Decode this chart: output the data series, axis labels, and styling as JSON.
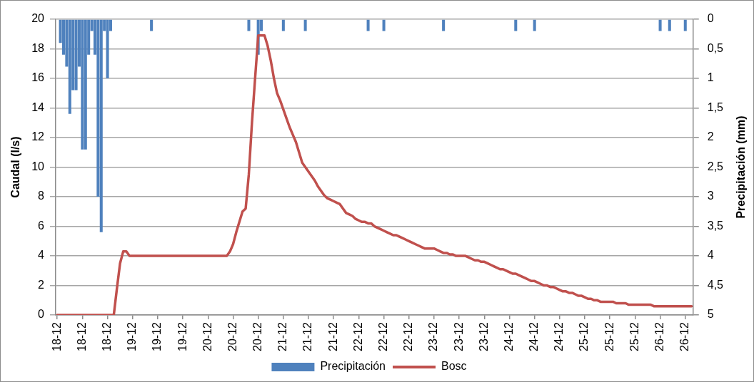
{
  "chart_data": {
    "type": "line",
    "ylabel": "Caudal (l/s)",
    "y2label": "Precipitación (mm)",
    "categories": [
      "18-12",
      null,
      null,
      null,
      null,
      null,
      null,
      null,
      "18-12",
      null,
      null,
      null,
      null,
      null,
      null,
      null,
      "18-12",
      null,
      null,
      null,
      null,
      null,
      null,
      null,
      "19-12",
      null,
      null,
      null,
      null,
      null,
      null,
      null,
      "19-12",
      null,
      null,
      null,
      null,
      null,
      null,
      null,
      "19-12",
      null,
      null,
      null,
      null,
      null,
      null,
      null,
      "20-12",
      null,
      null,
      null,
      null,
      null,
      null,
      null,
      "20-12",
      null,
      null,
      null,
      null,
      null,
      null,
      null,
      "20-12",
      null,
      null,
      null,
      null,
      null,
      null,
      null,
      "21-12",
      null,
      null,
      null,
      null,
      null,
      null,
      null,
      "21-12",
      null,
      null,
      null,
      null,
      null,
      null,
      null,
      "21-12",
      null,
      null,
      null,
      null,
      null,
      null,
      null,
      "22-12",
      null,
      null,
      null,
      null,
      null,
      null,
      null,
      "22-12",
      null,
      null,
      null,
      null,
      null,
      null,
      null,
      "22-12",
      null,
      null,
      null,
      null,
      null,
      null,
      null,
      "23-12",
      null,
      null,
      null,
      null,
      null,
      null,
      null,
      "23-12",
      null,
      null,
      null,
      null,
      null,
      null,
      null,
      "23-12",
      null,
      null,
      null,
      null,
      null,
      null,
      null,
      "24-12",
      null,
      null,
      null,
      null,
      null,
      null,
      null,
      "24-12",
      null,
      null,
      null,
      null,
      null,
      null,
      null,
      "24-12",
      null,
      null,
      null,
      null,
      null,
      null,
      null,
      "25-12",
      null,
      null,
      null,
      null,
      null,
      null,
      null,
      "25-12",
      null,
      null,
      null,
      null,
      null,
      null,
      null,
      "25-12",
      null,
      null,
      null,
      null,
      null,
      null,
      null,
      "26-12",
      null,
      null,
      null,
      null,
      null,
      null,
      null,
      "26-12",
      null,
      null
    ],
    "ylim": [
      0,
      20
    ],
    "yticks": [
      0,
      2,
      4,
      6,
      8,
      10,
      12,
      14,
      16,
      18,
      20
    ],
    "y2lim": [
      5,
      0
    ],
    "y2ticks": [
      0,
      {
        "value": 0.5,
        "label": "0,5"
      },
      1,
      {
        "value": 1.5,
        "label": "1,5"
      },
      2,
      {
        "value": 2.5,
        "label": "2,5"
      },
      3,
      {
        "value": 3.5,
        "label": "3,5"
      },
      4,
      {
        "value": 4.5,
        "label": "4,5"
      },
      5
    ],
    "grid": "y",
    "legend": "bottom",
    "series": [
      {
        "name": "Precipitación",
        "type": "bar",
        "axis": "y2",
        "color": "#4f81bd",
        "values": [
          null,
          0.4,
          0.6,
          0.8,
          1.6,
          1.2,
          1.2,
          0.8,
          2.2,
          2.2,
          0.6,
          0.2,
          0.6,
          3.0,
          3.6,
          0.2,
          1.0,
          0.2,
          null,
          null,
          null,
          null,
          null,
          null,
          null,
          null,
          null,
          null,
          null,
          null,
          0.2,
          null,
          null,
          null,
          null,
          null,
          null,
          null,
          null,
          null,
          null,
          null,
          null,
          null,
          null,
          null,
          null,
          null,
          null,
          null,
          null,
          null,
          null,
          null,
          null,
          null,
          null,
          null,
          null,
          null,
          null,
          0.2,
          null,
          null,
          0.6,
          0.2,
          null,
          null,
          null,
          null,
          null,
          null,
          0.2,
          null,
          null,
          null,
          null,
          null,
          null,
          0.2,
          null,
          null,
          null,
          null,
          null,
          null,
          null,
          null,
          null,
          null,
          null,
          null,
          null,
          null,
          null,
          null,
          null,
          null,
          null,
          0.2,
          null,
          null,
          null,
          null,
          0.2,
          null,
          null,
          null,
          null,
          null,
          null,
          null,
          null,
          null,
          null,
          null,
          null,
          null,
          null,
          null,
          null,
          null,
          null,
          0.2,
          null,
          null,
          null,
          null,
          null,
          null,
          null,
          null,
          null,
          null,
          null,
          null,
          null,
          null,
          null,
          null,
          null,
          null,
          null,
          null,
          null,
          null,
          0.2,
          null,
          null,
          null,
          null,
          null,
          0.2,
          null,
          null,
          null,
          null,
          null,
          null,
          null,
          null,
          null,
          null,
          null,
          null,
          null,
          null,
          null,
          null,
          null,
          null,
          null,
          null,
          null,
          null,
          null,
          null,
          null,
          null,
          null,
          null,
          null,
          null,
          null,
          null,
          null,
          null,
          null,
          null,
          null,
          null,
          null,
          0.2,
          null,
          null,
          0.2,
          null,
          null,
          null,
          null,
          0.2,
          null,
          null
        ]
      },
      {
        "name": "Bosc",
        "color": "#c0504d",
        "values": [
          0,
          0,
          0,
          0,
          0,
          0,
          0,
          0,
          0,
          0,
          0,
          0,
          0,
          0,
          0,
          0,
          0,
          0,
          0,
          1.8,
          3.5,
          4.3,
          4.3,
          4.0,
          4.0,
          4.0,
          4.0,
          4.0,
          4.0,
          4.0,
          4.0,
          4.0,
          4.0,
          4.0,
          4.0,
          4.0,
          4.0,
          4.0,
          4.0,
          4.0,
          4.0,
          4.0,
          4.0,
          4.0,
          4.0,
          4.0,
          4.0,
          4.0,
          4.0,
          4.0,
          4.0,
          4.0,
          4.0,
          4.0,
          4.0,
          4.3,
          4.8,
          5.6,
          6.3,
          7.0,
          7.2,
          9.5,
          13,
          16,
          18.9,
          18.9,
          18.9,
          18.2,
          17.2,
          16,
          15,
          14.5,
          13.9,
          13.3,
          12.7,
          12.2,
          11.7,
          11,
          10.3,
          10,
          9.7,
          9.4,
          9.1,
          8.7,
          8.4,
          8.1,
          7.9,
          7.8,
          7.7,
          7.6,
          7.5,
          7.2,
          6.9,
          6.8,
          6.7,
          6.5,
          6.4,
          6.3,
          6.3,
          6.2,
          6.2,
          6.0,
          5.9,
          5.8,
          5.7,
          5.6,
          5.5,
          5.4,
          5.4,
          5.3,
          5.2,
          5.1,
          5.0,
          4.9,
          4.8,
          4.7,
          4.6,
          4.5,
          4.5,
          4.5,
          4.5,
          4.4,
          4.3,
          4.2,
          4.2,
          4.1,
          4.1,
          4.0,
          4.0,
          4.0,
          4.0,
          3.9,
          3.8,
          3.7,
          3.7,
          3.6,
          3.6,
          3.5,
          3.4,
          3.3,
          3.2,
          3.1,
          3.1,
          3.0,
          2.9,
          2.8,
          2.8,
          2.7,
          2.6,
          2.5,
          2.4,
          2.3,
          2.3,
          2.2,
          2.1,
          2.0,
          2.0,
          1.9,
          1.9,
          1.8,
          1.7,
          1.6,
          1.6,
          1.5,
          1.5,
          1.4,
          1.3,
          1.3,
          1.2,
          1.1,
          1.1,
          1.0,
          1.0,
          0.9,
          0.9,
          0.9,
          0.9,
          0.9,
          0.8,
          0.8,
          0.8,
          0.8,
          0.7,
          0.7,
          0.7,
          0.7,
          0.7,
          0.7,
          0.7,
          0.7,
          0.6,
          0.6,
          0.6,
          0.6,
          0.6,
          0.6,
          0.6,
          0.6,
          0.6,
          0.6,
          0.6,
          0.6,
          0.6
        ]
      }
    ]
  }
}
